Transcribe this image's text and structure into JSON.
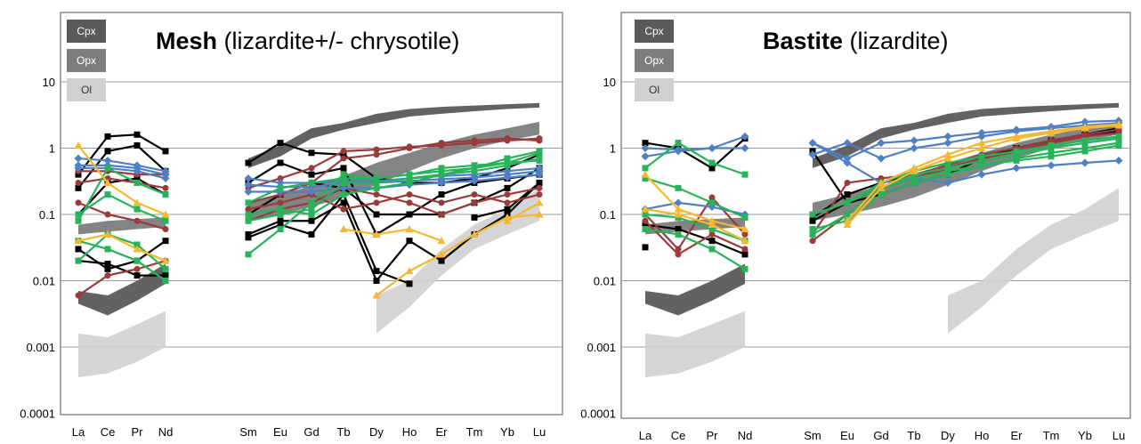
{
  "colors": {
    "cpx": "#5a5a5a",
    "opx": "#7d7d7d",
    "ol": "#d0d0d0",
    "black": "#000000",
    "brown": "#9b3a3a",
    "blue": "#4f7fc4",
    "green": "#27b35a",
    "orange": "#f5b82e"
  },
  "axis": {
    "ytick_labels": [
      "10",
      "1",
      "0.1",
      "0.01",
      "0.001",
      "0.0001"
    ],
    "ytick_values": [
      10,
      1,
      0.1,
      0.01,
      0.001,
      0.0001
    ],
    "xticks": [
      "La",
      "Ce",
      "Pr",
      "Nd",
      "Sm",
      "Eu",
      "Gd",
      "Tb",
      "Dy",
      "Ho",
      "Er",
      "Tm",
      "Yb",
      "Lu"
    ],
    "scale": "log",
    "ylim": [
      0.0001,
      100
    ]
  },
  "legend": {
    "cpx": "Cpx",
    "opx": "Opx",
    "ol": "Ol"
  },
  "chart_data": [
    {
      "type": "line",
      "title_bold": "Mesh",
      "title_normal": " (lizardite+/- chrysotile)",
      "bands": {
        "cpx": {
          "left": {
            "lower": [
              0.0045,
              0.003,
              0.005,
              0.009
            ],
            "upper": [
              0.007,
              0.006,
              0.01,
              0.018
            ]
          },
          "right": {
            "lower": [
              0.5,
              0.75,
              1.4,
              1.9,
              2.4,
              3.0,
              3.3,
              3.6,
              3.9,
              4.1
            ],
            "upper": [
              0.7,
              1.1,
              2.0,
              2.4,
              3.3,
              3.9,
              4.2,
              4.4,
              4.6,
              4.8
            ]
          }
        },
        "opx": {
          "left": {
            "lower": [
              0.05,
              0.055,
              0.06,
              0.065
            ],
            "upper": [
              0.07,
              0.08,
              0.085,
              0.09
            ]
          },
          "right": {
            "lower": [
              0.08,
              0.1,
              0.13,
              0.18,
              0.28,
              0.45,
              0.7,
              1.0,
              1.3,
              1.6
            ],
            "upper": [
              0.15,
              0.2,
              0.27,
              0.38,
              0.6,
              0.85,
              1.2,
              1.6,
              2.0,
              2.5
            ]
          }
        },
        "ol": {
          "left": {
            "lower": [
              0.00035,
              0.0004,
              0.0006,
              0.001
            ],
            "upper": [
              0.0016,
              0.0014,
              0.0022,
              0.0035
            ]
          },
          "right": {
            "lower": [
              null,
              null,
              null,
              null,
              0.0016,
              0.004,
              0.012,
              0.03,
              0.05,
              0.08
            ],
            "upper": [
              null,
              null,
              null,
              null,
              0.006,
              0.01,
              0.03,
              0.07,
              0.12,
              0.25
            ]
          }
        }
      },
      "series": [
        {
          "color": "black",
          "values": [
            0.4,
            1.5,
            1.6,
            0.9,
            0.6,
            1.2,
            0.85,
            0.8,
            0.35,
            0.3,
            0.3,
            0.35,
            0.5,
            0.8
          ]
        },
        {
          "color": "black",
          "values": [
            0.25,
            0.9,
            1.1,
            0.45,
            0.3,
            0.6,
            0.4,
            0.5,
            0.05,
            0.1,
            0.1,
            0.15,
            0.25,
            0.5
          ]
        },
        {
          "color": "black",
          "values": [
            0.1,
            0.3,
            0.35,
            0.2,
            0.05,
            0.08,
            0.08,
            0.15,
            0.01,
            0.04,
            0.02,
            0.05,
            0.1,
            0.3
          ]
        },
        {
          "color": "black",
          "values": [
            0.03,
            0.015,
            0.02,
            0.04,
            0.045,
            0.07,
            0.05,
            0.2,
            0.014,
            0.009,
            null,
            0.09,
            0.12,
            0.3
          ]
        },
        {
          "color": "black",
          "values": [
            0.02,
            0.018,
            0.012,
            0.012,
            0.1,
            0.2,
            0.3,
            0.25,
            0.1,
            0.1,
            0.2,
            0.3,
            0.35,
            0.4
          ]
        },
        {
          "color": "brown",
          "values": [
            0.45,
            0.45,
            0.4,
            0.4,
            0.25,
            0.35,
            0.5,
            0.9,
            0.95,
            1.05,
            1.1,
            1.2,
            1.3,
            1.4
          ]
        },
        {
          "color": "brown",
          "values": [
            0.3,
            0.35,
            0.3,
            0.25,
            0.15,
            0.2,
            0.3,
            0.7,
            0.8,
            1.0,
            1.2,
            1.3,
            1.4,
            1.3
          ]
        },
        {
          "color": "brown",
          "values": [
            0.15,
            0.1,
            0.08,
            0.06,
            0.12,
            0.15,
            0.2,
            0.12,
            0.15,
            0.2,
            0.15,
            0.2,
            0.15,
            0.2
          ]
        },
        {
          "color": "brown",
          "values": [
            0.006,
            0.012,
            0.015,
            0.02,
            0.08,
            0.12,
            0.15,
            0.25,
            0.2,
            0.15,
            0.1,
            0.15,
            0.2,
            0.25
          ]
        },
        {
          "color": "blue",
          "values": [
            0.7,
            0.65,
            0.55,
            0.45,
            0.35,
            0.3,
            0.3,
            0.32,
            0.32,
            0.35,
            0.38,
            0.4,
            0.45,
            0.5
          ]
        },
        {
          "color": "blue",
          "values": [
            0.55,
            0.55,
            0.5,
            0.4,
            0.28,
            0.26,
            0.26,
            0.3,
            0.3,
            0.32,
            0.34,
            0.36,
            0.4,
            0.45
          ]
        },
        {
          "color": "blue",
          "values": [
            0.5,
            0.5,
            0.45,
            0.35,
            0.22,
            0.22,
            0.22,
            0.25,
            0.25,
            0.28,
            0.3,
            0.32,
            0.36,
            0.4
          ]
        },
        {
          "color": "green",
          "values": [
            0.08,
            0.5,
            0.3,
            0.2,
            0.08,
            0.1,
            0.12,
            0.3,
            0.3,
            0.35,
            0.4,
            0.45,
            0.55,
            0.7
          ]
        },
        {
          "color": "green",
          "values": [
            0.02,
            0.05,
            0.035,
            0.015,
            0.025,
            0.06,
            0.15,
            0.4,
            0.35,
            0.4,
            0.45,
            0.5,
            0.6,
            0.85
          ]
        },
        {
          "color": "green",
          "values": [
            0.04,
            0.03,
            0.02,
            0.01,
            0.1,
            0.12,
            0.1,
            0.2,
            0.25,
            0.3,
            0.4,
            0.5,
            0.7,
            0.9
          ]
        },
        {
          "color": "green",
          "values": [
            0.1,
            0.2,
            0.12,
            0.08,
            0.15,
            0.25,
            0.3,
            0.35,
            0.35,
            0.4,
            0.5,
            0.55,
            0.6,
            0.65
          ]
        },
        {
          "color": "orange",
          "values": [
            1.1,
            0.3,
            0.15,
            0.1,
            null,
            null,
            null,
            0.06,
            0.05,
            0.06,
            0.04,
            null,
            0.08,
            0.15
          ]
        },
        {
          "color": "orange",
          "values": [
            0.04,
            0.05,
            0.03,
            0.02,
            null,
            null,
            null,
            null,
            0.006,
            0.014,
            0.025,
            0.05,
            0.09,
            0.1
          ]
        }
      ]
    },
    {
      "type": "line",
      "title_bold": "Bastite",
      "title_normal": " (lizardite)",
      "bands": {
        "cpx": {
          "left": {
            "lower": [
              0.0045,
              0.003,
              0.005,
              0.009
            ],
            "upper": [
              0.007,
              0.006,
              0.01,
              0.018
            ]
          },
          "right": {
            "lower": [
              0.5,
              0.75,
              1.4,
              1.9,
              2.4,
              3.0,
              3.3,
              3.6,
              3.9,
              4.1
            ],
            "upper": [
              0.7,
              1.1,
              2.0,
              2.4,
              3.3,
              3.9,
              4.2,
              4.4,
              4.6,
              4.8
            ]
          }
        },
        "opx": {
          "left": {
            "lower": [
              0.05,
              0.055,
              0.06,
              0.065
            ],
            "upper": [
              0.07,
              0.08,
              0.085,
              0.09
            ]
          },
          "right": {
            "lower": [
              0.08,
              0.1,
              0.13,
              0.18,
              0.28,
              0.45,
              0.7,
              1.0,
              1.3,
              1.6
            ],
            "upper": [
              0.15,
              0.2,
              0.27,
              0.38,
              0.6,
              0.85,
              1.2,
              1.6,
              2.0,
              2.5
            ]
          }
        },
        "ol": {
          "left": {
            "lower": [
              0.00035,
              0.0004,
              0.0006,
              0.001
            ],
            "upper": [
              0.0016,
              0.0014,
              0.0022,
              0.0035
            ]
          },
          "right": {
            "lower": [
              null,
              null,
              null,
              null,
              0.0016,
              0.004,
              0.012,
              0.03,
              0.05,
              0.08
            ],
            "upper": [
              null,
              null,
              null,
              null,
              0.006,
              0.01,
              0.03,
              0.07,
              0.12,
              0.25
            ]
          }
        }
      },
      "series": [
        {
          "color": "black",
          "values": [
            1.2,
            1.0,
            0.5,
            1.4,
            0.9,
            0.15,
            0.2,
            0.3,
            0.4,
            0.7,
            1.0,
            1.3,
            1.6,
            2.0
          ]
        },
        {
          "color": "black",
          "values": [
            0.07,
            0.06,
            0.04,
            0.025,
            0.08,
            0.15,
            0.25,
            0.35,
            0.5,
            0.7,
            0.9,
            1.2,
            1.5,
            1.8
          ]
        },
        {
          "color": "black",
          "values": [
            0.032,
            null,
            null,
            null,
            0.09,
            0.2,
            0.3,
            0.4,
            0.5,
            0.7,
            1.0,
            1.3,
            1.6,
            2.0
          ]
        },
        {
          "color": "brown",
          "values": [
            0.08,
            0.025,
            0.05,
            0.03,
            0.05,
            0.3,
            0.35,
            0.4,
            0.55,
            0.8,
            1.0,
            1.3,
            1.6,
            1.9
          ]
        },
        {
          "color": "brown",
          "values": [
            0.1,
            0.03,
            0.18,
            0.05,
            0.04,
            0.1,
            0.25,
            0.35,
            0.5,
            0.7,
            0.9,
            1.2,
            1.5,
            1.7
          ]
        },
        {
          "color": "blue",
          "values": [
            0.75,
            0.9,
            1.0,
            1.0,
            1.2,
            0.7,
            1.2,
            1.3,
            1.5,
            1.7,
            1.9,
            2.1,
            2.5,
            2.6
          ]
        },
        {
          "color": "blue",
          "values": [
            1.0,
            0.95,
            1.0,
            1.5,
            0.8,
            1.2,
            0.7,
            1.0,
            1.2,
            1.5,
            1.8,
            2.0,
            2.2,
            2.4
          ]
        },
        {
          "color": "blue",
          "values": [
            0.12,
            0.15,
            0.13,
            0.1,
            1.2,
            0.6,
            0.3,
            0.35,
            0.3,
            0.4,
            0.5,
            0.55,
            0.6,
            0.65
          ]
        },
        {
          "color": "green",
          "values": [
            0.5,
            1.2,
            0.6,
            0.4,
            0.1,
            0.15,
            0.25,
            0.35,
            0.45,
            0.55,
            0.65,
            0.75,
            0.9,
            1.1
          ]
        },
        {
          "color": "green",
          "values": [
            0.35,
            0.25,
            0.15,
            0.09,
            0.06,
            0.08,
            0.2,
            0.3,
            0.4,
            0.55,
            0.7,
            0.85,
            1.0,
            1.2
          ]
        },
        {
          "color": "green",
          "values": [
            0.1,
            0.09,
            0.06,
            0.04,
            0.05,
            0.1,
            0.25,
            0.4,
            0.5,
            0.65,
            0.8,
            1.0,
            1.2,
            1.4
          ]
        },
        {
          "color": "green",
          "values": [
            0.06,
            0.05,
            0.03,
            0.015,
            0.1,
            0.15,
            0.3,
            0.45,
            0.6,
            0.75,
            0.9,
            1.1,
            1.3,
            1.5
          ]
        },
        {
          "color": "orange",
          "values": [
            0.4,
            0.12,
            0.08,
            0.06,
            null,
            0.08,
            0.3,
            0.5,
            0.8,
            1.2,
            1.5,
            1.8,
            2.1,
            2.3
          ]
        },
        {
          "color": "orange",
          "values": [
            0.12,
            0.1,
            0.07,
            0.04,
            null,
            0.07,
            0.25,
            0.45,
            0.7,
            1.0,
            1.4,
            1.7,
            2.0,
            2.2
          ]
        }
      ]
    }
  ]
}
